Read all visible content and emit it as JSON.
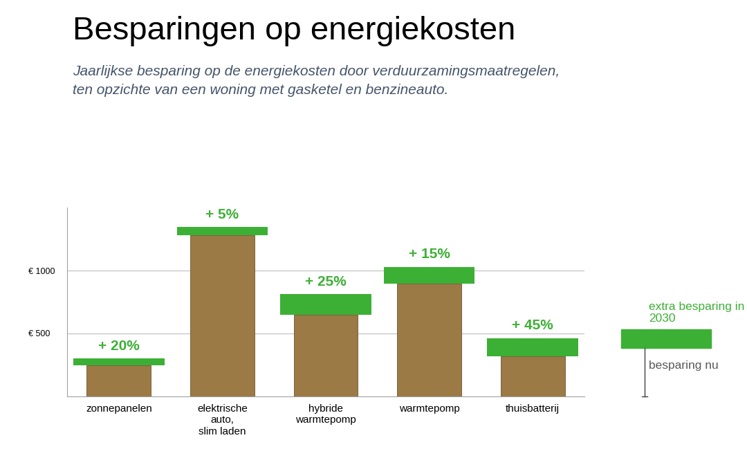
{
  "chart_data": {
    "type": "bar",
    "title": "Besparingen op energiekosten",
    "subtitle": "Jaarlijkse besparing op de energiekosten door verduurzamingsmaatregelen,\nten opzichte van een woning met gasketel en benzineauto.",
    "categories": [
      "zonnepanelen",
      "elektrische\nauto,\nslim laden",
      "hybride\nwarmtepomp",
      "warmtepomp",
      "thuisbatterij"
    ],
    "stacked": true,
    "series": [
      {
        "name": "besparing nu",
        "color": "#9c7a45",
        "values": [
          250,
          1280,
          650,
          895,
          320
        ]
      },
      {
        "name": "extra besparing in 2030",
        "color": "#3cb034",
        "values": [
          50,
          64,
          162,
          134,
          144
        ],
        "annotations": [
          "+ 20%",
          "+ 5%",
          "+ 25%",
          "+ 15%",
          "+ 45%"
        ]
      }
    ],
    "ylim": [
      0,
      1500
    ],
    "yticks": [
      {
        "value": 500,
        "label": "€ 500"
      },
      {
        "value": 1000,
        "label": "€ 1000"
      }
    ],
    "grid": true
  }
}
